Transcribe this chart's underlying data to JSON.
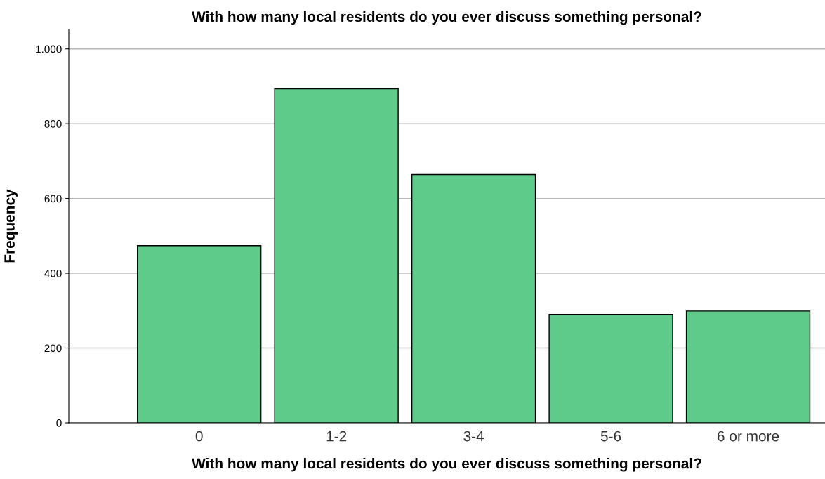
{
  "chart_data": {
    "type": "bar",
    "title": "With how many local residents do you ever discuss something personal?",
    "xlabel": "With how many local residents do you ever discuss something personal?",
    "ylabel": "Frequency",
    "categories": [
      "0",
      "1-2",
      "3-4",
      "5-6",
      "6 or more"
    ],
    "values": [
      474,
      893,
      664,
      290,
      299
    ],
    "color": "#5ecb8b",
    "ylim": [
      0,
      1052
    ],
    "yticks": [
      0,
      200,
      400,
      600,
      800,
      {
        "value": 1000,
        "label": "1.000"
      }
    ],
    "grid": "y",
    "legend": false
  }
}
